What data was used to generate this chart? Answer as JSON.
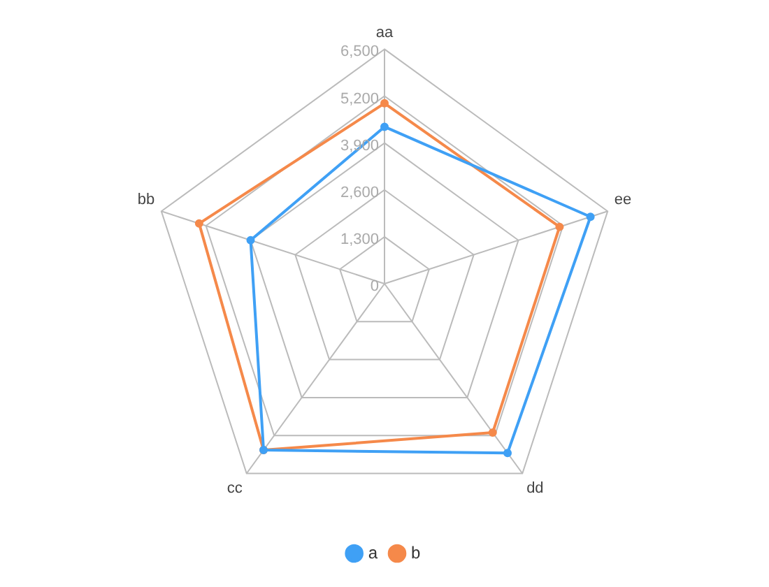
{
  "chart_data": {
    "type": "radar",
    "categories": [
      "aa",
      "ee",
      "dd",
      "cc",
      "bb"
    ],
    "series": [
      {
        "name": "a",
        "color": "#3fa0f5",
        "values": [
          4350,
          6000,
          5800,
          5700,
          3900
        ]
      },
      {
        "name": "b",
        "color": "#f5894a",
        "values": [
          5000,
          5100,
          5100,
          5700,
          5400
        ]
      }
    ],
    "ylim": [
      0,
      6500
    ],
    "yticks": [
      {
        "value": 0,
        "label": "0"
      },
      {
        "value": 1300,
        "label": "1,300"
      },
      {
        "value": 2600,
        "label": "2,600"
      },
      {
        "value": 3900,
        "label": "3,900"
      },
      {
        "value": 5200,
        "label": "5,200"
      },
      {
        "value": 6500,
        "label": "6,500"
      }
    ],
    "grid": true,
    "legend": "bottom",
    "marker": "circle",
    "line_style": "solid"
  }
}
